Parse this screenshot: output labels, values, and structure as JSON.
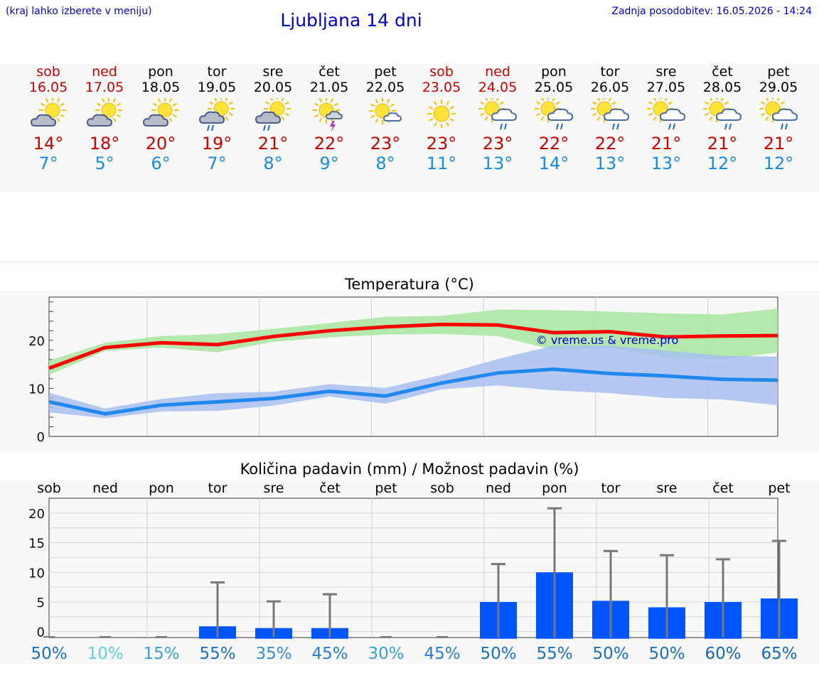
{
  "header": {
    "hint": "(kraj lahko izberete v meniju)",
    "title": "Ljubljana 14 dni",
    "updated": "Zadnja posodobitev: 16.05.2026 - 14:24"
  },
  "days": [
    {
      "name": "sob",
      "date": "16.05",
      "weekend": true,
      "max": "14°",
      "min": "7°",
      "icon": "partly-cloudy-icon"
    },
    {
      "name": "ned",
      "date": "17.05",
      "weekend": true,
      "max": "18°",
      "min": "5°",
      "icon": "partly-cloudy-icon"
    },
    {
      "name": "pon",
      "date": "18.05",
      "weekend": false,
      "max": "20°",
      "min": "6°",
      "icon": "partly-cloudy-icon"
    },
    {
      "name": "tor",
      "date": "19.05",
      "weekend": false,
      "max": "19°",
      "min": "7°",
      "icon": "sun-rain-icon"
    },
    {
      "name": "sre",
      "date": "20.05",
      "weekend": false,
      "max": "21°",
      "min": "8°",
      "icon": "sun-rain-icon"
    },
    {
      "name": "čet",
      "date": "21.05",
      "weekend": false,
      "max": "22°",
      "min": "9°",
      "icon": "sun-thunder-icon"
    },
    {
      "name": "pet",
      "date": "22.05",
      "weekend": false,
      "max": "23°",
      "min": "8°",
      "icon": "sun-small-cloud-icon"
    },
    {
      "name": "sob",
      "date": "23.05",
      "weekend": true,
      "max": "23°",
      "min": "11°",
      "icon": "sun-icon"
    },
    {
      "name": "ned",
      "date": "24.05",
      "weekend": true,
      "max": "23°",
      "min": "13°",
      "icon": "sun-cloud-rain-icon"
    },
    {
      "name": "pon",
      "date": "25.05",
      "weekend": false,
      "max": "22°",
      "min": "14°",
      "icon": "sun-cloud-rain-icon"
    },
    {
      "name": "tor",
      "date": "26.05",
      "weekend": false,
      "max": "22°",
      "min": "13°",
      "icon": "sun-cloud-rain-icon"
    },
    {
      "name": "sre",
      "date": "27.05",
      "weekend": false,
      "max": "21°",
      "min": "13°",
      "icon": "sun-cloud-rain-icon"
    },
    {
      "name": "čet",
      "date": "28.05",
      "weekend": false,
      "max": "21°",
      "min": "12°",
      "icon": "sun-cloud-rain-icon"
    },
    {
      "name": "pet",
      "date": "29.05",
      "weekend": false,
      "max": "21°",
      "min": "12°",
      "icon": "sun-cloud-rain-icon"
    }
  ],
  "colors": {
    "weekend": "#cc0000",
    "max": "#cc0000",
    "min": "#1a8ce0",
    "max_line": "#ff0000",
    "min_line": "#2288ee",
    "max_band": "#a8e6a0",
    "min_band": "#a8c0f0",
    "bar": "#0055ff",
    "whisker": "#777777",
    "watermark": "#0000cc"
  },
  "chart_data": [
    {
      "type": "line",
      "title": "Temperatura (°C)",
      "watermark": "© vreme.us & vreme.pro",
      "ylim": [
        0,
        29
      ],
      "yticks": [
        "0",
        "10",
        "20"
      ],
      "grid": true,
      "x": [
        "16.05",
        "17.05",
        "18.05",
        "19.05",
        "20.05",
        "21.05",
        "22.05",
        "23.05",
        "24.05",
        "25.05",
        "26.05",
        "27.05",
        "28.05",
        "29.05"
      ],
      "series": [
        {
          "role": "max",
          "values": [
            14.2,
            18.5,
            19.5,
            19.1,
            20.8,
            22.0,
            22.8,
            23.3,
            23.2,
            21.6,
            21.8,
            20.7,
            20.9,
            21.0
          ],
          "band_low": [
            12.8,
            17.8,
            18.5,
            17.5,
            19.7,
            20.6,
            21.2,
            21.3,
            20.9,
            18.0,
            18.5,
            16.5,
            16.0,
            17.5
          ],
          "band_high": [
            15.8,
            19.5,
            20.9,
            21.3,
            22.4,
            23.6,
            24.9,
            25.1,
            26.4,
            26.3,
            26.0,
            25.6,
            25.4,
            26.6
          ]
        },
        {
          "role": "min",
          "values": [
            7.2,
            4.7,
            6.5,
            7.2,
            7.9,
            9.4,
            8.4,
            11.1,
            13.2,
            14.0,
            13.1,
            12.6,
            11.9,
            11.7
          ],
          "band_low": [
            5.0,
            3.8,
            5.2,
            5.3,
            6.4,
            8.3,
            6.8,
            9.8,
            10.6,
            9.6,
            9.0,
            8.0,
            7.7,
            6.5
          ],
          "band_high": [
            9.1,
            5.8,
            7.8,
            9.0,
            9.3,
            10.9,
            10.1,
            12.8,
            16.1,
            18.9,
            18.9,
            17.9,
            16.8,
            16.6
          ]
        }
      ]
    },
    {
      "type": "bar",
      "title": "Količina padavin (mm) / Možnost padavin (%)",
      "ylim": [
        -1,
        22.5
      ],
      "yticks": [
        "0",
        "5",
        "10",
        "15",
        "20"
      ],
      "grid": true,
      "categories": [
        "sob",
        "ned",
        "pon",
        "tor",
        "sre",
        "čet",
        "pet",
        "sob",
        "ned",
        "pon",
        "tor",
        "sre",
        "čet",
        "pet"
      ],
      "values": [
        0,
        0,
        0,
        0.9,
        0.6,
        0.6,
        0,
        0,
        5.0,
        10.0,
        5.2,
        4.1,
        5.0,
        5.6
      ],
      "max_values": [
        0,
        0,
        0,
        8.3,
        5.1,
        6.3,
        0,
        0,
        11.4,
        20.8,
        13.6,
        12.9,
        12.2,
        15.3
      ],
      "probability": [
        "50%",
        "10%",
        "15%",
        "55%",
        "35%",
        "45%",
        "30%",
        "45%",
        "50%",
        "55%",
        "50%",
        "50%",
        "60%",
        "65%"
      ],
      "probability_colors": [
        "#1a6fc0",
        "#5fd0e0",
        "#3aa0d8",
        "#1a6fc0",
        "#3a8cd0",
        "#2a7ccc",
        "#3aa0d8",
        "#2a7ccc",
        "#1a6fc0",
        "#1a6fc0",
        "#1a6fc0",
        "#1a6fc0",
        "#1566b8",
        "#1566b8"
      ]
    }
  ]
}
